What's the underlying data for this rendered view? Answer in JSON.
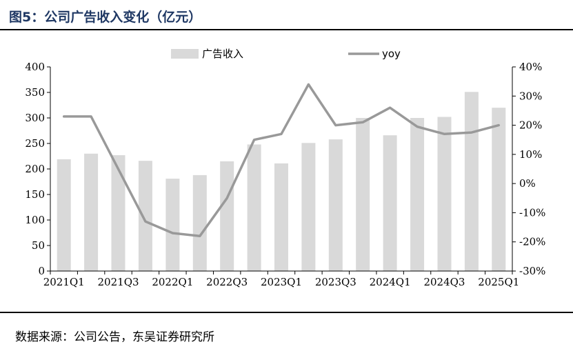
{
  "title": "图5：公司广告收入变化（亿元）",
  "source": "数据来源：公司公告，东吴证券研究所",
  "chart_data": {
    "type": "bar+line",
    "categories": [
      "2021Q1",
      "2021Q2",
      "2021Q3",
      "2021Q4",
      "2022Q1",
      "2022Q2",
      "2022Q3",
      "2022Q4",
      "2023Q1",
      "2023Q2",
      "2023Q3",
      "2023Q4",
      "2024Q1",
      "2024Q2",
      "2024Q3",
      "2024Q4",
      "2025Q1"
    ],
    "x_tick_labels": [
      "2021Q1",
      "2021Q3",
      "2022Q1",
      "2022Q3",
      "2023Q1",
      "2023Q3",
      "2024Q1",
      "2024Q3",
      "2025Q1"
    ],
    "series": [
      {
        "name": "广告收入",
        "kind": "bar",
        "axis": "left",
        "color": "#d9d9d9",
        "values": [
          219,
          230,
          227,
          216,
          181,
          188,
          215,
          248,
          211,
          251,
          258,
          300,
          266,
          300,
          302,
          351,
          320
        ]
      },
      {
        "name": "yoy",
        "kind": "line",
        "axis": "right",
        "color": "#999999",
        "values": [
          23,
          23,
          5,
          -13,
          -17,
          -18,
          -5,
          15,
          17,
          34,
          20,
          21,
          26,
          19.5,
          17,
          17.5,
          20
        ]
      }
    ],
    "y_left": {
      "ylim": [
        0,
        400
      ],
      "ticks": [
        "0",
        "50",
        "100",
        "150",
        "200",
        "250",
        "300",
        "350",
        "400"
      ]
    },
    "y_right": {
      "ylim": [
        -30,
        40
      ],
      "ticks": [
        "-30%",
        "-20%",
        "-10%",
        "0%",
        "10%",
        "20%",
        "30%",
        "40%"
      ]
    },
    "legend": {
      "position": "top",
      "items": [
        "广告收入",
        "yoy"
      ]
    }
  }
}
